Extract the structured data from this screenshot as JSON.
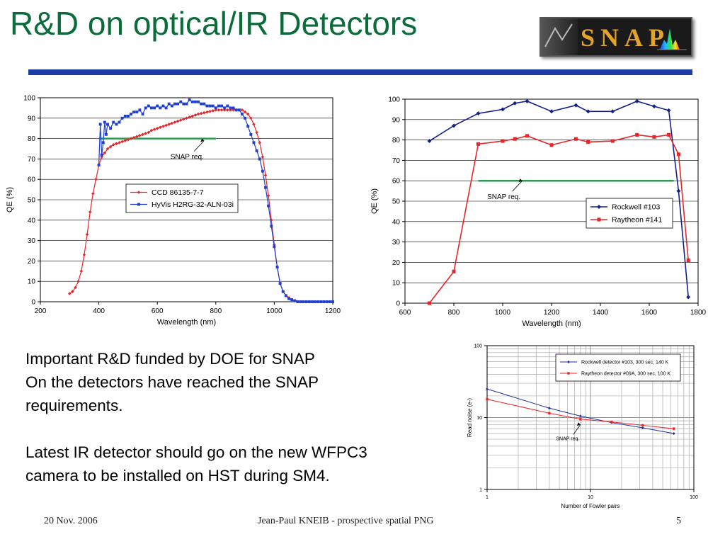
{
  "slide": {
    "title": "R&D on optical/IR Detectors",
    "logo_text": "SNAP",
    "body_lines": [
      "Important R&D funded by DOE for SNAP",
      "On the detectors have reached the SNAP requirements.",
      "Latest IR detector should go on the new WFPC3 camera to be installed on HST during SM4."
    ],
    "footer_date": "20 Nov. 2006",
    "footer_center": "Jean-Paul KNEIB - prospective spatial PNG",
    "page_number": "5",
    "colors": {
      "title": "#0b6b3a",
      "rule": "#1c3da8",
      "logo_text": "#e2a42c"
    }
  },
  "chart_data": [
    {
      "type": "line",
      "xlabel": "Wavelength (nm)",
      "ylabel": "QE (%)",
      "xlim": [
        200,
        1200
      ],
      "ylim": [
        0,
        100
      ],
      "xticks": [
        200,
        400,
        600,
        800,
        1000,
        1200
      ],
      "yticks": [
        0,
        10,
        20,
        30,
        40,
        50,
        60,
        70,
        80,
        90,
        100
      ],
      "legend": "center-left",
      "grid": true,
      "annotation": {
        "text": "SNAP req.",
        "arrow_to": [
          760,
          79
        ]
      },
      "requirement": {
        "x": [
          400,
          800
        ],
        "y": 80,
        "color": "#2e9a55"
      },
      "series": [
        {
          "name": "CCD 86135-7-7",
          "color": "#e8262a",
          "marker": "diamond",
          "x": [
            300,
            310,
            320,
            330,
            340,
            350,
            360,
            370,
            380,
            390,
            400,
            410,
            420,
            430,
            440,
            450,
            460,
            470,
            480,
            490,
            500,
            510,
            520,
            530,
            540,
            550,
            560,
            570,
            580,
            590,
            600,
            610,
            620,
            630,
            640,
            650,
            660,
            670,
            680,
            690,
            700,
            710,
            720,
            730,
            740,
            750,
            760,
            770,
            780,
            790,
            800,
            810,
            820,
            830,
            840,
            850,
            860,
            870,
            880,
            890,
            900,
            910,
            920,
            930,
            940,
            950,
            960,
            970,
            980,
            990,
            1000,
            1010,
            1020,
            1030,
            1040,
            1050,
            1060,
            1070,
            1080,
            1090,
            1100,
            1110,
            1120,
            1130,
            1140,
            1150,
            1160,
            1170,
            1180,
            1190,
            1200
          ],
          "y": [
            4,
            5,
            7,
            10,
            15,
            23,
            33,
            44,
            53,
            60,
            67,
            71,
            73,
            75,
            76,
            77,
            77.5,
            78,
            78.5,
            79,
            79.5,
            80,
            80.5,
            81,
            81.5,
            82,
            82.5,
            83,
            84,
            84.5,
            85,
            85.5,
            86,
            86.5,
            87,
            87.5,
            88,
            88.5,
            89,
            89.5,
            90,
            90.5,
            91,
            91.5,
            92,
            92.3,
            92.6,
            93,
            93.3,
            93.6,
            94,
            94,
            94,
            94,
            94,
            94,
            94,
            94,
            94,
            94,
            93,
            92,
            90,
            87,
            83,
            78,
            71,
            62,
            52,
            40,
            28,
            17,
            9,
            5,
            3,
            2,
            1,
            0.5,
            0,
            0,
            0,
            0,
            0,
            0,
            0,
            0,
            0,
            0,
            0,
            0,
            0
          ]
        },
        {
          "name": "HyVis H2RG-32-ALN-03i",
          "color": "#1f3fcf",
          "marker": "square",
          "x": [
            400,
            405,
            410,
            415,
            420,
            425,
            430,
            440,
            450,
            460,
            470,
            480,
            490,
            500,
            510,
            520,
            530,
            540,
            550,
            560,
            570,
            580,
            590,
            600,
            610,
            620,
            630,
            640,
            650,
            660,
            670,
            680,
            690,
            700,
            710,
            720,
            730,
            740,
            750,
            760,
            770,
            780,
            790,
            800,
            810,
            820,
            830,
            840,
            850,
            860,
            870,
            880,
            890,
            900,
            910,
            920,
            930,
            940,
            950,
            960,
            970,
            980,
            990,
            1000,
            1010,
            1020,
            1030,
            1040,
            1050,
            1060,
            1070,
            1080,
            1090,
            1100,
            1110,
            1120,
            1130,
            1140,
            1150,
            1160,
            1170,
            1180,
            1190,
            1200
          ],
          "y": [
            67,
            87,
            72,
            78,
            88,
            82,
            87,
            85,
            88,
            87,
            88,
            90,
            91,
            91,
            92,
            93,
            93,
            94,
            92,
            95,
            96,
            95,
            95,
            96,
            95,
            96,
            95,
            97,
            96,
            97,
            97,
            98,
            97,
            97,
            99,
            98,
            98,
            98,
            97,
            97,
            96,
            96,
            96,
            95,
            96,
            96,
            95,
            96,
            95,
            95,
            94,
            94,
            92,
            90,
            86,
            82,
            78,
            74,
            70,
            64,
            56,
            47,
            37,
            27,
            17,
            9,
            5,
            3,
            1.5,
            1,
            0.5,
            0,
            0,
            0,
            0,
            0,
            0,
            0,
            0,
            0,
            0,
            0,
            0,
            0
          ]
        }
      ]
    },
    {
      "type": "line",
      "xlabel": "Wavelength (nm)",
      "ylabel": "QE (%)",
      "xlim": [
        600,
        1800
      ],
      "ylim": [
        0,
        100
      ],
      "xticks": [
        600,
        800,
        1000,
        1200,
        1400,
        1600,
        1800
      ],
      "yticks": [
        0,
        10,
        20,
        30,
        40,
        50,
        60,
        70,
        80,
        90,
        100
      ],
      "legend": "center-right",
      "grid": true,
      "annotation": {
        "text": "SNAP req.",
        "arrow_to": [
          1080,
          60
        ]
      },
      "requirement": {
        "x": [
          900,
          1700
        ],
        "y": 60,
        "color": "#2e9a55"
      },
      "series": [
        {
          "name": "Rockwell #103",
          "color": "#14208a",
          "marker": "diamond",
          "x": [
            700,
            800,
            900,
            1000,
            1050,
            1100,
            1200,
            1300,
            1350,
            1450,
            1550,
            1620,
            1680,
            1720,
            1760
          ],
          "y": [
            79.5,
            87,
            93,
            95,
            98,
            99,
            94,
            97,
            94,
            94,
            99,
            96.5,
            94.5,
            55,
            3
          ]
        },
        {
          "name": "Raytheon #141",
          "color": "#e8262a",
          "marker": "square",
          "x": [
            700,
            800,
            900,
            1000,
            1050,
            1100,
            1200,
            1300,
            1350,
            1450,
            1550,
            1620,
            1680,
            1720,
            1760
          ],
          "y": [
            0,
            15.5,
            78,
            79.5,
            80.5,
            82,
            77.5,
            80.5,
            79,
            79.5,
            82.5,
            81.5,
            82.5,
            73,
            21
          ]
        }
      ]
    },
    {
      "type": "line",
      "xlabel": "Number of Fowler pairs",
      "ylabel": "Read noise (e-)",
      "xscale": "log",
      "yscale": "log",
      "xlim": [
        1,
        100
      ],
      "ylim": [
        1,
        100
      ],
      "xticks": [
        1,
        10,
        100
      ],
      "yticks": [
        1,
        10,
        100
      ],
      "legend": "top-right",
      "grid": true,
      "annotation": {
        "text": "SNAP req.",
        "arrow_to": [
          8,
          8
        ]
      },
      "series": [
        {
          "name": "Rockwell detector #103, 300 sec, 140 K",
          "color": "#1f2f9a",
          "marker": "diamond",
          "x": [
            1,
            4,
            8,
            16,
            32,
            64
          ],
          "y": [
            25,
            13.5,
            10.5,
            8.5,
            7.2,
            6
          ]
        },
        {
          "name": "Raytheon detector #09A, 300 sec, 100 K",
          "color": "#e8262a",
          "marker": "square",
          "x": [
            1,
            4,
            8,
            16,
            32,
            64
          ],
          "y": [
            18,
            11.5,
            9.5,
            8.7,
            7.8,
            7
          ]
        }
      ]
    }
  ]
}
